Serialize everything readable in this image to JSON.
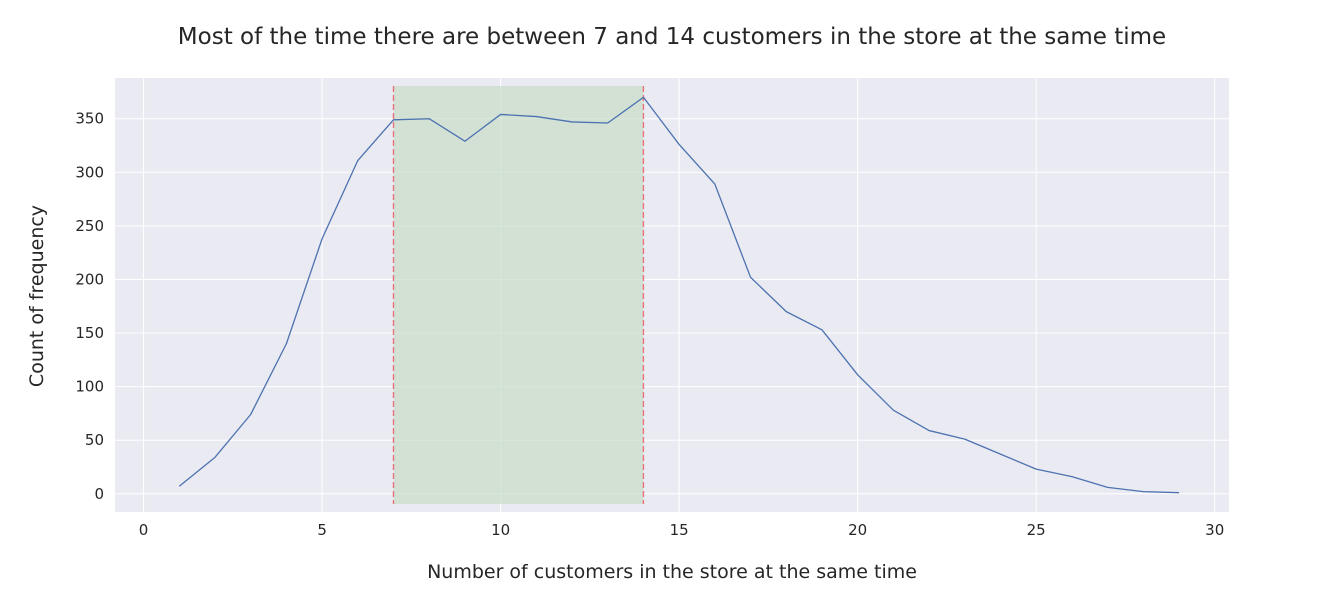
{
  "chart_data": {
    "type": "line",
    "title": "Most of the time there are between 7 and 14 customers in the store at the same time",
    "xlabel": "Number of customers in the store at the same time",
    "ylabel": "Count of frequency",
    "xlim": [
      -0.8,
      30.4
    ],
    "ylim": [
      -17,
      388
    ],
    "xticks": [
      0,
      5,
      10,
      15,
      20,
      25,
      30
    ],
    "yticks": [
      0,
      50,
      100,
      150,
      200,
      250,
      300,
      350
    ],
    "grid": true,
    "highlight_band": {
      "x_start": 7,
      "x_end": 14,
      "color": "#c8ddc8",
      "edge_color": "#e8737a"
    },
    "series": [
      {
        "color": "#4c72b0",
        "x": [
          1,
          2,
          3,
          4,
          5,
          6,
          7,
          8,
          9,
          10,
          11,
          12,
          13,
          14,
          15,
          16,
          17,
          18,
          19,
          20,
          21,
          22,
          23,
          24,
          25,
          26,
          27,
          28,
          29
        ],
        "y": [
          7,
          34,
          74,
          140,
          238,
          311,
          349,
          350,
          329,
          354,
          352,
          347,
          346,
          370,
          326,
          289,
          202,
          170,
          153,
          111,
          78,
          59,
          51,
          37,
          23,
          16,
          6,
          2,
          1
        ]
      }
    ]
  }
}
